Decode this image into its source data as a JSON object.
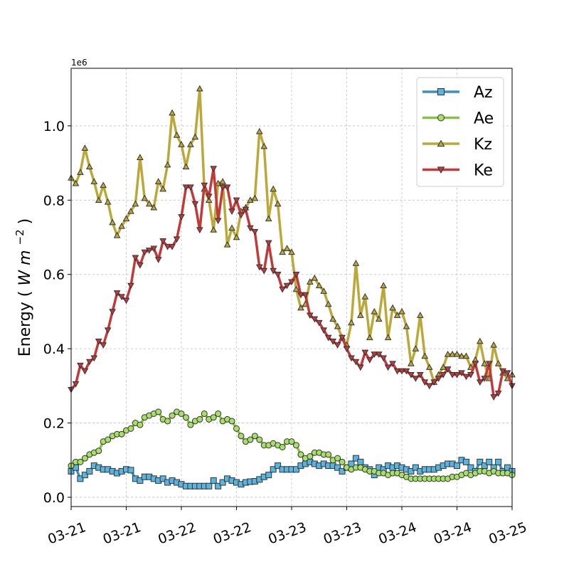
{
  "chart_data": {
    "type": "line",
    "title": "",
    "xlabel": "",
    "ylabel": "Energy",
    "ylabel_unit": "W m",
    "ylabel_exp": "−2",
    "scale_note": "1e6",
    "xlim": [
      0,
      96
    ],
    "ylim": [
      -25000,
      1155000
    ],
    "y_ticks": [
      0,
      200000,
      400000,
      600000,
      800000,
      1000000
    ],
    "y_tick_labels": [
      "0.0",
      "0.2",
      "0.4",
      "0.6",
      "0.8",
      "1.0"
    ],
    "x_ticks": [
      0,
      12,
      24,
      36,
      48,
      60,
      72,
      84,
      96
    ],
    "x_tick_labels": [
      "03-21",
      "03-21",
      "03-22",
      "03-22",
      "03-23",
      "03-23",
      "03-24",
      "03-24",
      "03-25"
    ],
    "grid": true,
    "legend_position": "top-right",
    "x_hours": [
      0,
      1,
      2,
      3,
      4,
      5,
      6,
      7,
      8,
      9,
      10,
      11,
      12,
      13,
      14,
      15,
      16,
      17,
      18,
      19,
      20,
      21,
      22,
      23,
      24,
      25,
      26,
      27,
      28,
      29,
      30,
      31,
      32,
      33,
      34,
      35,
      36,
      37,
      38,
      39,
      40,
      41,
      42,
      43,
      44,
      45,
      46,
      47,
      48,
      49,
      50,
      51,
      52,
      53,
      54,
      55,
      56,
      57,
      58,
      59,
      60,
      61,
      62,
      63,
      64,
      65,
      66,
      67,
      68,
      69,
      70,
      71,
      72,
      73,
      74,
      75,
      76,
      77,
      78,
      79,
      80,
      81,
      82,
      83,
      84,
      85,
      86,
      87,
      88,
      89,
      90,
      91,
      92,
      93,
      94,
      95,
      96
    ],
    "series": [
      {
        "name": "Az",
        "color": "#3b8fc4",
        "marker": "square",
        "marker_fill": "#5ab4e0",
        "values": [
          70000,
          80000,
          50000,
          60000,
          70000,
          85000,
          80000,
          75000,
          75000,
          70000,
          65000,
          70000,
          75000,
          73000,
          50000,
          45000,
          55000,
          55000,
          50000,
          45000,
          50000,
          40000,
          45000,
          40000,
          35000,
          30000,
          30000,
          30000,
          30000,
          30000,
          30000,
          45000,
          30000,
          40000,
          50000,
          45000,
          40000,
          35000,
          40000,
          42000,
          43000,
          48000,
          55000,
          60000,
          75000,
          85000,
          75000,
          75000,
          75000,
          75000,
          85000,
          90000,
          95000,
          90000,
          85000,
          90000,
          85000,
          85000,
          80000,
          70000,
          80000,
          90000,
          105000,
          95000,
          80000,
          75000,
          60000,
          80000,
          75000,
          85000,
          80000,
          85000,
          80000,
          75000,
          70000,
          80000,
          70000,
          75000,
          75000,
          75000,
          80000,
          85000,
          90000,
          90000,
          85000,
          100000,
          95000,
          80000,
          70000,
          95000,
          85000,
          95000,
          80000,
          95000,
          70000,
          80000,
          70000
        ]
      },
      {
        "name": "Ae",
        "color": "#8bbf45",
        "marker": "circle",
        "marker_fill": "#a6e066",
        "values": [
          85000,
          95000,
          95000,
          105000,
          115000,
          120000,
          125000,
          150000,
          155000,
          165000,
          170000,
          170000,
          180000,
          185000,
          200000,
          195000,
          215000,
          220000,
          225000,
          230000,
          210000,
          205000,
          220000,
          230000,
          225000,
          215000,
          195000,
          205000,
          210000,
          225000,
          210000,
          215000,
          225000,
          205000,
          210000,
          205000,
          185000,
          165000,
          150000,
          155000,
          165000,
          155000,
          140000,
          140000,
          145000,
          140000,
          135000,
          150000,
          150000,
          140000,
          115000,
          105000,
          110000,
          120000,
          120000,
          115000,
          115000,
          100000,
          105000,
          95000,
          80000,
          75000,
          80000,
          80000,
          75000,
          70000,
          70000,
          65000,
          65000,
          60000,
          65000,
          65000,
          60000,
          55000,
          50000,
          50000,
          50000,
          50000,
          50000,
          50000,
          50000,
          50000,
          50000,
          55000,
          55000,
          60000,
          65000,
          60000,
          65000,
          70000,
          70000,
          65000,
          70000,
          65000,
          65000,
          65000,
          60000
        ]
      },
      {
        "name": "Kz",
        "color": "#bca83a",
        "marker": "triangle-up",
        "marker_fill": "#bca83a",
        "values": [
          860000,
          845000,
          875000,
          940000,
          890000,
          850000,
          800000,
          840000,
          795000,
          740000,
          705000,
          730000,
          750000,
          770000,
          790000,
          915000,
          805000,
          790000,
          780000,
          850000,
          830000,
          895000,
          1035000,
          975000,
          950000,
          890000,
          950000,
          970000,
          1100000,
          830000,
          800000,
          720000,
          845000,
          850000,
          680000,
          725000,
          700000,
          770000,
          780000,
          800000,
          805000,
          985000,
          945000,
          750000,
          830000,
          790000,
          660000,
          670000,
          660000,
          560000,
          510000,
          520000,
          580000,
          590000,
          570000,
          555000,
          520000,
          480000,
          460000,
          430000,
          410000,
          470000,
          630000,
          490000,
          540000,
          430000,
          500000,
          480000,
          570000,
          430000,
          510000,
          490000,
          500000,
          460000,
          360000,
          400000,
          490000,
          380000,
          350000,
          310000,
          330000,
          350000,
          385000,
          385000,
          385000,
          380000,
          380000,
          350000,
          370000,
          420000,
          360000,
          320000,
          410000,
          360000,
          335000,
          320000,
          330000
        ]
      },
      {
        "name": "Ke",
        "color": "#c13a3a",
        "marker": "triangle-down",
        "marker_fill": "#c13a3a",
        "values": [
          290000,
          305000,
          355000,
          340000,
          365000,
          375000,
          420000,
          410000,
          450000,
          500000,
          550000,
          540000,
          530000,
          570000,
          645000,
          625000,
          660000,
          665000,
          670000,
          640000,
          690000,
          675000,
          675000,
          695000,
          755000,
          835000,
          835000,
          790000,
          720000,
          840000,
          810000,
          885000,
          745000,
          835000,
          835000,
          770000,
          800000,
          760000,
          775000,
          725000,
          715000,
          620000,
          610000,
          685000,
          610000,
          600000,
          560000,
          570000,
          580000,
          600000,
          545000,
          545000,
          490000,
          480000,
          470000,
          450000,
          430000,
          420000,
          410000,
          430000,
          400000,
          375000,
          365000,
          350000,
          390000,
          370000,
          385000,
          385000,
          375000,
          350000,
          360000,
          340000,
          340000,
          340000,
          330000,
          320000,
          330000,
          310000,
          300000,
          310000,
          320000,
          330000,
          345000,
          330000,
          330000,
          335000,
          325000,
          330000,
          360000,
          310000,
          320000,
          360000,
          270000,
          280000,
          340000,
          335000,
          300000
        ]
      }
    ]
  }
}
